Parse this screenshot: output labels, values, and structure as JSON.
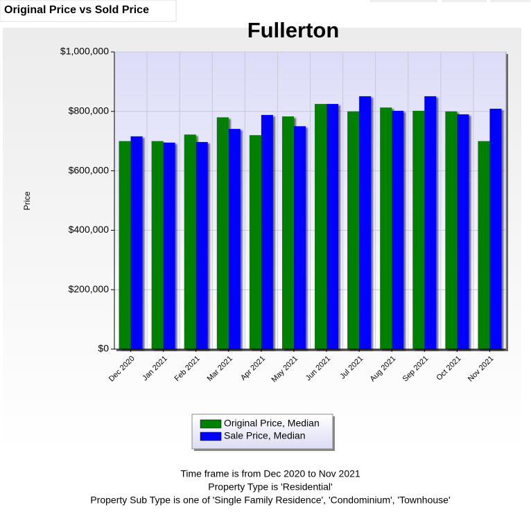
{
  "header": {
    "tab": "Original Price vs Sold Price"
  },
  "chart_data": {
    "type": "bar",
    "title": "Fullerton",
    "y_label": "Price",
    "categories": [
      "Dec 2020",
      "Jan 2021",
      "Feb 2021",
      "Mar 2021",
      "Apr 2021",
      "May 2021",
      "Jun 2021",
      "Jul 2021",
      "Aug 2021",
      "Sep 2021",
      "Oct 2021",
      "Nov 2021"
    ],
    "series": [
      {
        "name": "Original Price, Median",
        "color": "#008000",
        "values": [
          700000,
          700000,
          722000,
          780000,
          720000,
          783000,
          825000,
          800000,
          813000,
          802000,
          800000,
          700000
        ]
      },
      {
        "name": "Sale Price, Median",
        "color": "#0000ff",
        "values": [
          716000,
          695000,
          697000,
          741000,
          788000,
          750000,
          825000,
          851000,
          802000,
          851000,
          790000,
          809000
        ]
      }
    ],
    "ylim": [
      0,
      1000000
    ],
    "yticks": [
      {
        "value": 0,
        "label": "$0"
      },
      {
        "value": 200000,
        "label": "$200,000"
      },
      {
        "value": 400000,
        "label": "$400,000"
      },
      {
        "value": 600000,
        "label": "$600,000"
      },
      {
        "value": 800000,
        "label": "$800,000"
      },
      {
        "value": 1000000,
        "label": "$1,000,000"
      }
    ],
    "grid": true,
    "legend": "bottom",
    "notes": [
      "Time frame is from Dec 2020 to Nov 2021",
      "Property Type is 'Residential'",
      "Property Sub Type is one of 'Single Family Residence', 'Condominium', 'Townhouse'"
    ]
  }
}
